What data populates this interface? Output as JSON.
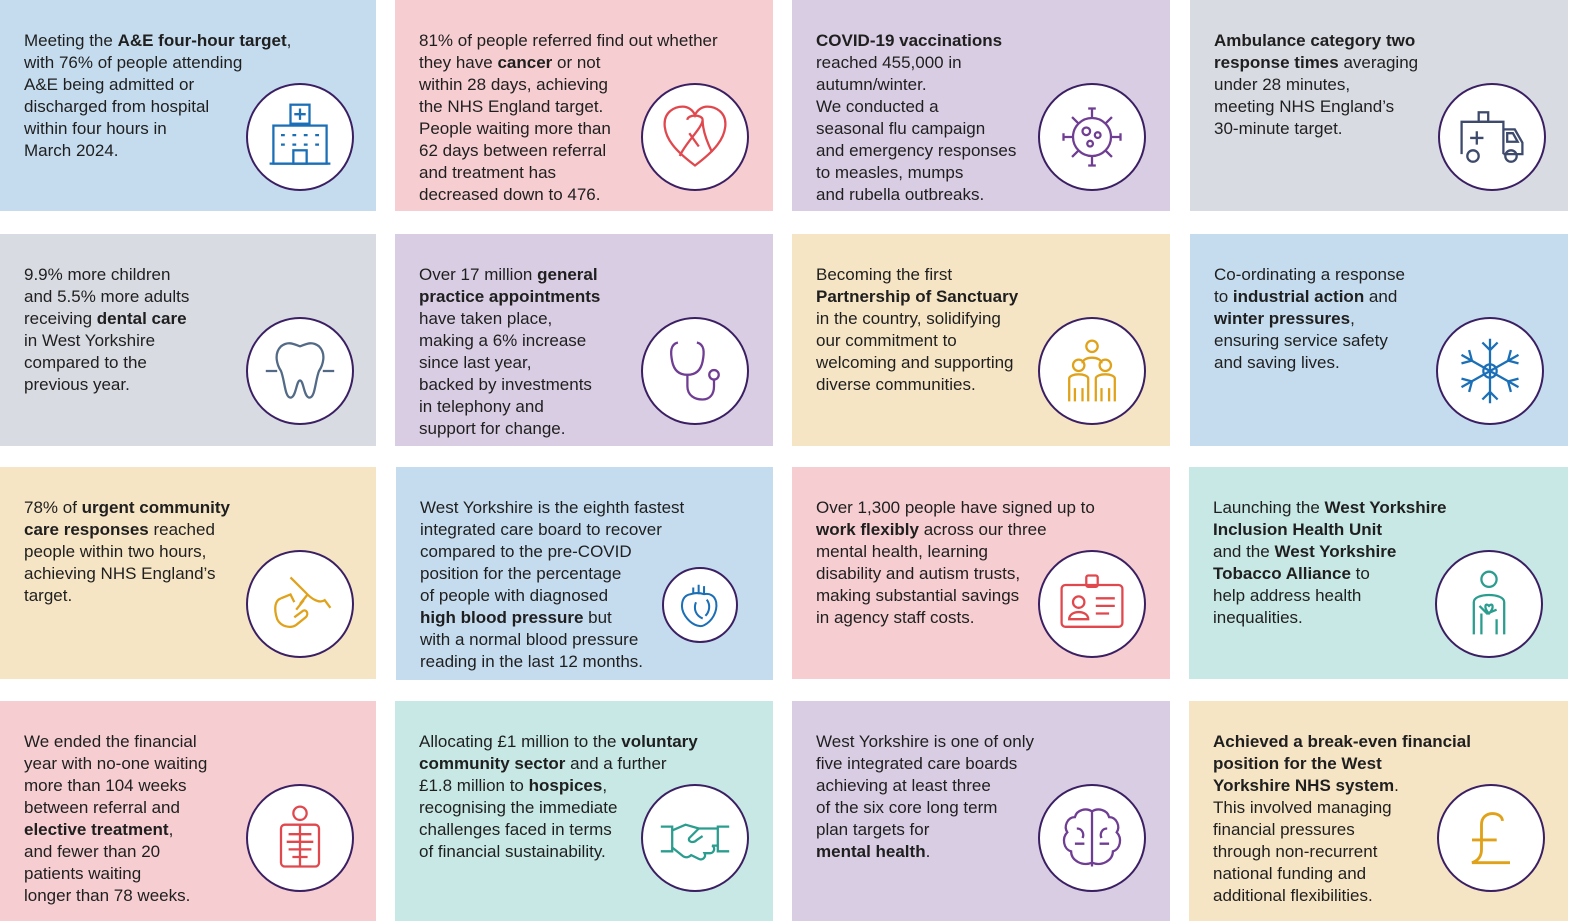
{
  "colors": {
    "blue": "#c5dcef",
    "pink": "#f6cdd0",
    "lavender": "#d9cde3",
    "grey": "#d9dbe3",
    "cream": "#f6e5c4",
    "teal": "#c7e8e4",
    "circle_border": "#3b1f63"
  },
  "cards": [
    {
      "id": "ae",
      "icon": "hospital-icon",
      "color": "blue",
      "parts": [
        {
          "t": "Meeting the ",
          "b": false
        },
        {
          "t": "A&E four-hour target",
          "b": true
        },
        {
          "t": ",",
          "b": false
        },
        {
          "t": "\n",
          "b": false
        },
        {
          "t": "with 76% of people attending\nA&E being admitted or\ndischarged from hospital\nwithin four hours in\nMarch 2024.",
          "b": false
        }
      ]
    },
    {
      "id": "cancer",
      "icon": "ribbon-heart-icon",
      "color": "pink",
      "parts": [
        {
          "t": "81% of people referred find out whether\nthey have ",
          "b": false
        },
        {
          "t": "cancer",
          "b": true
        },
        {
          "t": " or not\nwithin 28 days, achieving\nthe NHS England target.\nPeople waiting more than\n62 days between referral\nand treatment has\ndecreased down to 476.",
          "b": false
        }
      ]
    },
    {
      "id": "covid",
      "icon": "virus-icon",
      "color": "lavender",
      "parts": [
        {
          "t": "COVID-19 vaccinations",
          "b": true
        },
        {
          "t": "\nreached 455,000 in\nautumn/winter.\nWe conducted a\nseasonal flu campaign\nand emergency responses\nto measles, mumps\nand rubella outbreaks.",
          "b": false
        }
      ]
    },
    {
      "id": "ambulance",
      "icon": "ambulance-icon",
      "color": "grey",
      "parts": [
        {
          "t": "Ambulance category two\nresponse times",
          "b": true
        },
        {
          "t": " averaging\nunder 28 minutes,\nmeeting NHS England’s\n30-minute target.",
          "b": false
        }
      ]
    },
    {
      "id": "dental",
      "icon": "tooth-icon",
      "color": "grey",
      "parts": [
        {
          "t": "9.9% more children\nand 5.5% more adults\nreceiving ",
          "b": false
        },
        {
          "t": "dental care",
          "b": true
        },
        {
          "t": "\nin West Yorkshire\ncompared to the\nprevious year.",
          "b": false
        }
      ]
    },
    {
      "id": "gp",
      "icon": "stethoscope-icon",
      "color": "lavender",
      "parts": [
        {
          "t": "Over 17 million ",
          "b": false
        },
        {
          "t": "general\npractice appointments",
          "b": true
        },
        {
          "t": "\nhave taken place,\nmaking a 6% increase\nsince last year,\nbacked by investments\nin telephony and\nsupport for change.",
          "b": false
        }
      ]
    },
    {
      "id": "sanctuary",
      "icon": "family-icon",
      "color": "cream",
      "parts": [
        {
          "t": "Becoming the first\n",
          "b": false
        },
        {
          "t": "Partnership of Sanctuary",
          "b": true
        },
        {
          "t": "\nin the country, solidifying\nour commitment to\nwelcoming and supporting\ndiverse communities.",
          "b": false
        }
      ]
    },
    {
      "id": "industrial",
      "icon": "snowflake-icon",
      "color": "blue",
      "parts": [
        {
          "t": "Co-ordinating a response\nto ",
          "b": false
        },
        {
          "t": "industrial action",
          "b": true
        },
        {
          "t": " and\n",
          "b": false
        },
        {
          "t": "winter pressures",
          "b": true
        },
        {
          "t": ",\nensuring service safety\nand saving lives.",
          "b": false
        }
      ]
    },
    {
      "id": "urgent",
      "icon": "handshake-help-icon",
      "color": "cream",
      "parts": [
        {
          "t": "78% of ",
          "b": false
        },
        {
          "t": "urgent community\ncare responses",
          "b": true
        },
        {
          "t": " reached\npeople within two hours,\nachieving NHS England’s\ntarget.",
          "b": false
        }
      ]
    },
    {
      "id": "bp",
      "icon": "heart-organ-icon",
      "color": "blue",
      "parts": [
        {
          "t": "West Yorkshire is the eighth fastest\nintegrated care board to recover\ncompared to the pre-COVID\nposition for the percentage\nof people with diagnosed\n",
          "b": false
        },
        {
          "t": "high blood pressure",
          "b": true
        },
        {
          "t": " but\nwith a normal blood pressure\nreading in the last 12 months.",
          "b": false
        }
      ]
    },
    {
      "id": "flex",
      "icon": "id-badge-icon",
      "color": "pink",
      "parts": [
        {
          "t": "Over 1,300 people have signed up to\n",
          "b": false
        },
        {
          "t": "work flexibly",
          "b": true
        },
        {
          "t": " across our three\nmental health, learning\ndisability and autism trusts,\nmaking substantial savings\nin agency staff costs.",
          "b": false
        }
      ]
    },
    {
      "id": "inclusion",
      "icon": "person-heart-icon",
      "color": "teal",
      "parts": [
        {
          "t": "Launching the ",
          "b": false
        },
        {
          "t": "West Yorkshire\nInclusion Health Unit",
          "b": true
        },
        {
          "t": "\nand the ",
          "b": false
        },
        {
          "t": "West Yorkshire\nTobacco Alliance",
          "b": true
        },
        {
          "t": " to\nhelp address health\ninequalities.",
          "b": false
        }
      ]
    },
    {
      "id": "elective",
      "icon": "xray-icon",
      "color": "pink",
      "parts": [
        {
          "t": "We ended the financial\nyear with no-one waiting\nmore than 104 weeks\nbetween referral and\n",
          "b": false
        },
        {
          "t": "elective treatment",
          "b": true
        },
        {
          "t": ",\nand fewer than 20\npatients waiting\nlonger than 78 weeks.",
          "b": false
        }
      ]
    },
    {
      "id": "voluntary",
      "icon": "handshake-icon",
      "color": "teal",
      "parts": [
        {
          "t": "Allocating £1 million to the ",
          "b": false
        },
        {
          "t": "voluntary\ncommunity sector",
          "b": true
        },
        {
          "t": " and a further\n£1.8 million to ",
          "b": false
        },
        {
          "t": "hospices",
          "b": true
        },
        {
          "t": ",\nrecognising the immediate\nchallenges faced in terms\nof financial sustainability.",
          "b": false
        }
      ]
    },
    {
      "id": "mental",
      "icon": "brain-icon",
      "color": "lavender",
      "parts": [
        {
          "t": "West Yorkshire is one of only\nfive integrated care boards\nachieving at least three\nof the six core long term\nplan targets for\n",
          "b": false
        },
        {
          "t": "mental health",
          "b": true
        },
        {
          "t": ".",
          "b": false
        }
      ]
    },
    {
      "id": "finance",
      "icon": "pound-icon",
      "color": "cream",
      "parts": [
        {
          "t": "Achieved a break-even financial\nposition for the West\nYorkshire NHS system",
          "b": true
        },
        {
          "t": ".\nThis involved managing\nfinancial pressures\nthrough non-recurrent\nnational funding and\nadditional flexibilities.",
          "b": false
        }
      ]
    }
  ]
}
